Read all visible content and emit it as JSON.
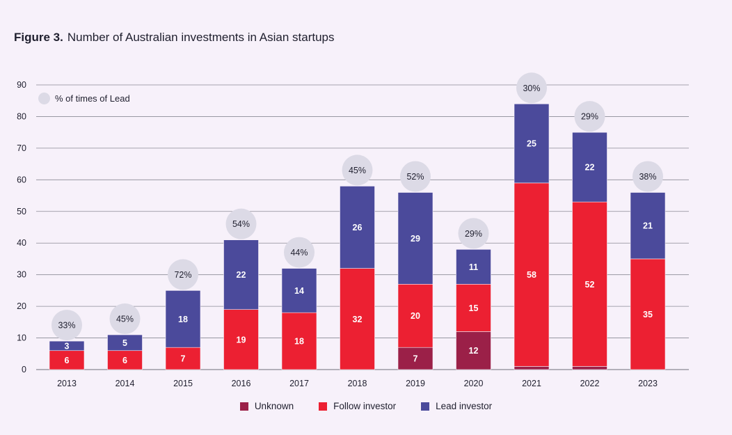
{
  "figure_label": "Figure 3.",
  "title": "Number of Australian investments in Asian startups",
  "lead_note": "% of times of Lead",
  "colors": {
    "unknown": "#9b2048",
    "follow": "#ec2032",
    "lead": "#4b4a9b",
    "lead_circle": "#dcdae6",
    "grid": "#8a8a95",
    "background": "#f7f1fa"
  },
  "chart_data": {
    "type": "bar",
    "stacked": true,
    "title": "Number of Australian investments in Asian startups",
    "xlabel": "",
    "ylabel": "",
    "ylim": [
      0,
      90
    ],
    "yticks": [
      0,
      10,
      20,
      30,
      40,
      50,
      60,
      70,
      80,
      90
    ],
    "grid": true,
    "categories": [
      "2013",
      "2014",
      "2015",
      "2016",
      "2017",
      "2018",
      "2019",
      "2020",
      "2021",
      "2022",
      "2023"
    ],
    "series": [
      {
        "name": "Unknown",
        "key": "unknown",
        "values": [
          0,
          0,
          0,
          0,
          0,
          0,
          7,
          12,
          1,
          1,
          0
        ]
      },
      {
        "name": "Follow investor",
        "key": "follow",
        "values": [
          6,
          6,
          7,
          19,
          18,
          32,
          20,
          15,
          58,
          52,
          35
        ]
      },
      {
        "name": "Lead investor",
        "key": "lead",
        "values": [
          3,
          5,
          18,
          22,
          14,
          26,
          29,
          11,
          25,
          22,
          21
        ]
      }
    ],
    "lead_percent_labels": [
      "33%",
      "45%",
      "72%",
      "54%",
      "44%",
      "45%",
      "52%",
      "29%",
      "30%",
      "29%",
      "38%"
    ],
    "legend": [
      "Unknown",
      "Follow investor",
      "Lead investor"
    ],
    "legend_position": "bottom"
  }
}
